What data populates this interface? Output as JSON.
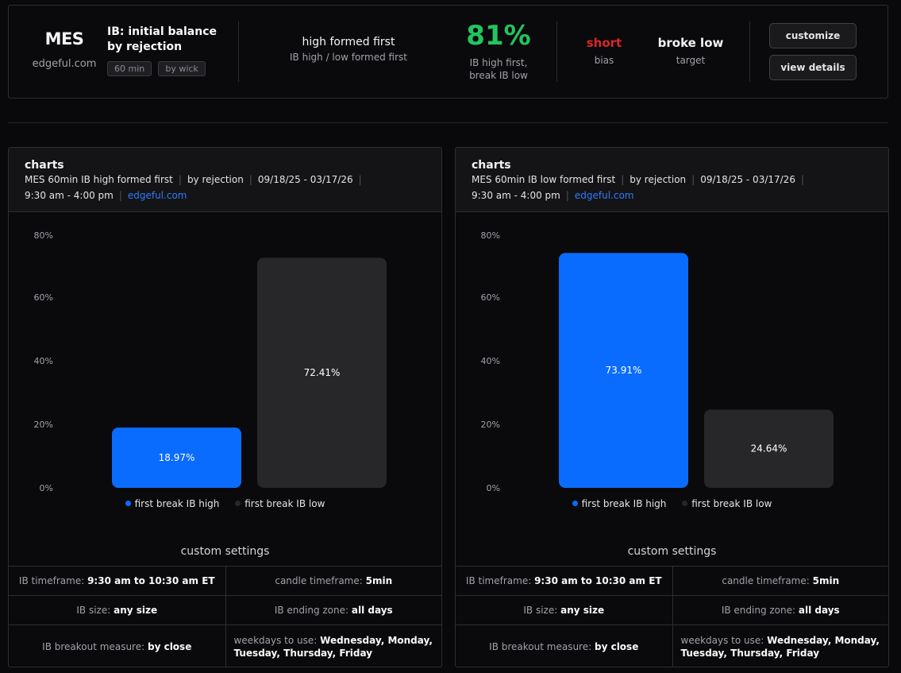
{
  "summary": {
    "symbol": "MES",
    "site": "edgeful.com",
    "report_title_line1": "IB: initial balance",
    "report_title_line2": "by rejection",
    "chip_timeframe": "60 min",
    "chip_measure": "by wick",
    "scenario_title": "high formed first",
    "scenario_sub": "IB high / low formed first",
    "probability": "81%",
    "probability_color": "#22c55e",
    "probability_sub1": "IB high first,",
    "probability_sub2": "break IB low",
    "bias_value": "short",
    "bias_color": "#dc2626",
    "bias_label": "bias",
    "target_value": "broke low",
    "target_label": "target",
    "customize_label": "customize",
    "details_label": "view details"
  },
  "panels": [
    {
      "title": "charts",
      "subtitle_main": "MES 60min IB high formed first",
      "subtitle_by": "by rejection",
      "subtitle_dates": "09/18/25 - 03/17/26",
      "subtitle_hours": "9:30 am - 4:00 pm",
      "subtitle_link": "edgeful.com",
      "custom_settings_title": "custom settings",
      "settings": {
        "ib_timeframe_label": "IB timeframe:",
        "ib_timeframe_value": "9:30 am to 10:30 am ET",
        "candle_tf_label": "candle timeframe:",
        "candle_tf_value": "5min",
        "ib_size_label": "IB size:",
        "ib_size_value": "any size",
        "ending_zone_label": "IB ending zone:",
        "ending_zone_value": "all days",
        "breakout_label": "IB breakout measure:",
        "breakout_value": "by close",
        "weekdays_label": "weekdays to use:",
        "weekdays_value": "Wednesday, Monday, Tuesday, Thursday, Friday"
      }
    },
    {
      "title": "charts",
      "subtitle_main": "MES 60min IB low formed first",
      "subtitle_by": "by rejection",
      "subtitle_dates": "09/18/25 - 03/17/26",
      "subtitle_hours": "9:30 am - 4:00 pm",
      "subtitle_link": "edgeful.com",
      "custom_settings_title": "custom settings",
      "settings": {
        "ib_timeframe_label": "IB timeframe:",
        "ib_timeframe_value": "9:30 am to 10:30 am ET",
        "candle_tf_label": "candle timeframe:",
        "candle_tf_value": "5min",
        "ib_size_label": "IB size:",
        "ib_size_value": "any size",
        "ending_zone_label": "IB ending zone:",
        "ending_zone_value": "all days",
        "breakout_label": "IB breakout measure:",
        "breakout_value": "by close",
        "weekdays_label": "weekdays to use:",
        "weekdays_value": "Wednesday, Monday, Tuesday, Thursday, Friday"
      }
    }
  ],
  "chart_data": [
    {
      "type": "bar",
      "title": "charts",
      "categories": [
        "first break IB high",
        "first break IB low"
      ],
      "values": [
        18.97,
        72.41
      ],
      "labels": [
        "18.97%",
        "72.41%"
      ],
      "colors": [
        "#0a6cff",
        "#27272a"
      ],
      "yticks": [
        "0%",
        "20%",
        "40%",
        "60%",
        "80%"
      ],
      "ylim": [
        0,
        80
      ],
      "legend": [
        "first break IB high",
        "first break IB low"
      ]
    },
    {
      "type": "bar",
      "title": "charts",
      "categories": [
        "first break IB high",
        "first break IB low"
      ],
      "values": [
        73.91,
        24.64
      ],
      "labels": [
        "73.91%",
        "24.64%"
      ],
      "colors": [
        "#0a6cff",
        "#27272a"
      ],
      "yticks": [
        "0%",
        "20%",
        "40%",
        "60%",
        "80%"
      ],
      "ylim": [
        0,
        80
      ],
      "legend": [
        "first break IB high",
        "first break IB low"
      ]
    }
  ]
}
